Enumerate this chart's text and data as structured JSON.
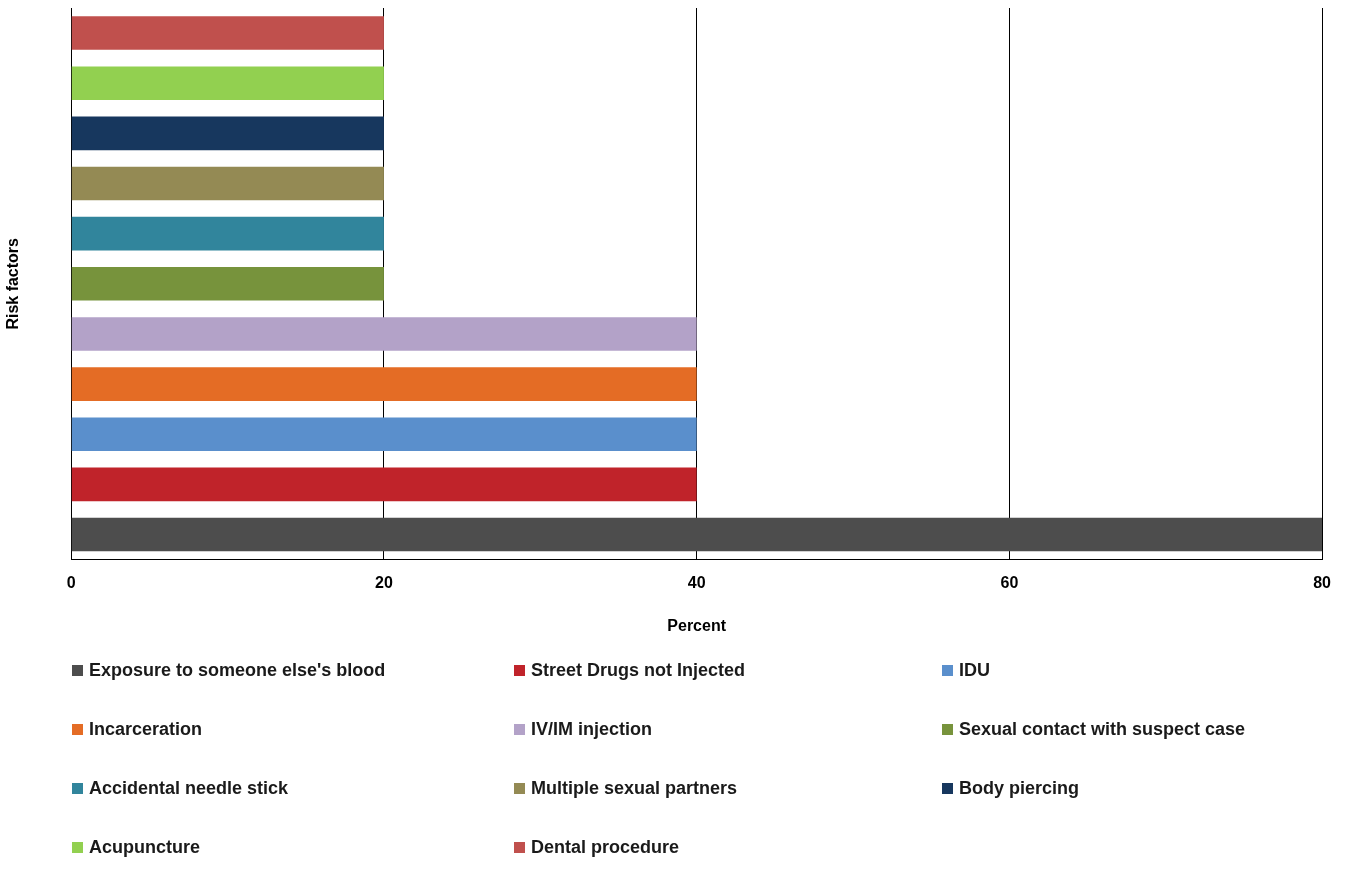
{
  "chart_data": {
    "type": "bar",
    "orientation": "horizontal",
    "xlabel": "Percent",
    "ylabel": "Risk factors",
    "categories": [
      null,
      null,
      null,
      null,
      null,
      null,
      null,
      null,
      null,
      null,
      null
    ],
    "series": [
      {
        "name": "Exposure to someone else's blood",
        "color": "#4d4d4d",
        "values": [
          null,
          null,
          null,
          null,
          null,
          null,
          null,
          null,
          null,
          null,
          80
        ]
      },
      {
        "name": "Street Drugs not Injected",
        "color": "#c0232a",
        "values": [
          null,
          null,
          null,
          null,
          null,
          null,
          null,
          null,
          null,
          40,
          null
        ]
      },
      {
        "name": "IDU",
        "color": "#5a8fcc",
        "values": [
          null,
          null,
          null,
          null,
          null,
          null,
          null,
          null,
          40,
          null,
          null
        ]
      },
      {
        "name": "Incarceration",
        "color": "#e46c25",
        "values": [
          null,
          null,
          null,
          null,
          null,
          null,
          null,
          40,
          null,
          null,
          null
        ]
      },
      {
        "name": "IV/IM injection",
        "color": "#b3a2c8",
        "values": [
          null,
          null,
          null,
          null,
          null,
          null,
          40,
          null,
          null,
          null,
          null
        ]
      },
      {
        "name": "Sexual contact with suspect case",
        "color": "#77933c",
        "values": [
          null,
          null,
          null,
          null,
          null,
          20,
          null,
          null,
          null,
          null,
          null
        ]
      },
      {
        "name": "Accidental needle stick",
        "color": "#31859c",
        "values": [
          null,
          null,
          null,
          null,
          20,
          null,
          null,
          null,
          null,
          null,
          null
        ]
      },
      {
        "name": "Multiple sexual partners",
        "color": "#948a54",
        "values": [
          null,
          null,
          null,
          20,
          null,
          null,
          null,
          null,
          null,
          null,
          null
        ]
      },
      {
        "name": "Body piercing",
        "color": "#17375e",
        "values": [
          null,
          null,
          20,
          null,
          null,
          null,
          null,
          null,
          null,
          null,
          null
        ]
      },
      {
        "name": "Acupuncture",
        "color": "#92d050",
        "values": [
          null,
          20,
          null,
          null,
          null,
          null,
          null,
          null,
          null,
          null,
          null
        ]
      },
      {
        "name": "Dental procedure",
        "color": "#c0504d",
        "values": [
          20,
          null,
          null,
          null,
          null,
          null,
          null,
          null,
          null,
          null,
          null
        ]
      }
    ],
    "xlim": [
      0,
      80
    ],
    "xticks": [
      0,
      20,
      40,
      60,
      80
    ],
    "grid": "x",
    "legend": "bottom"
  }
}
